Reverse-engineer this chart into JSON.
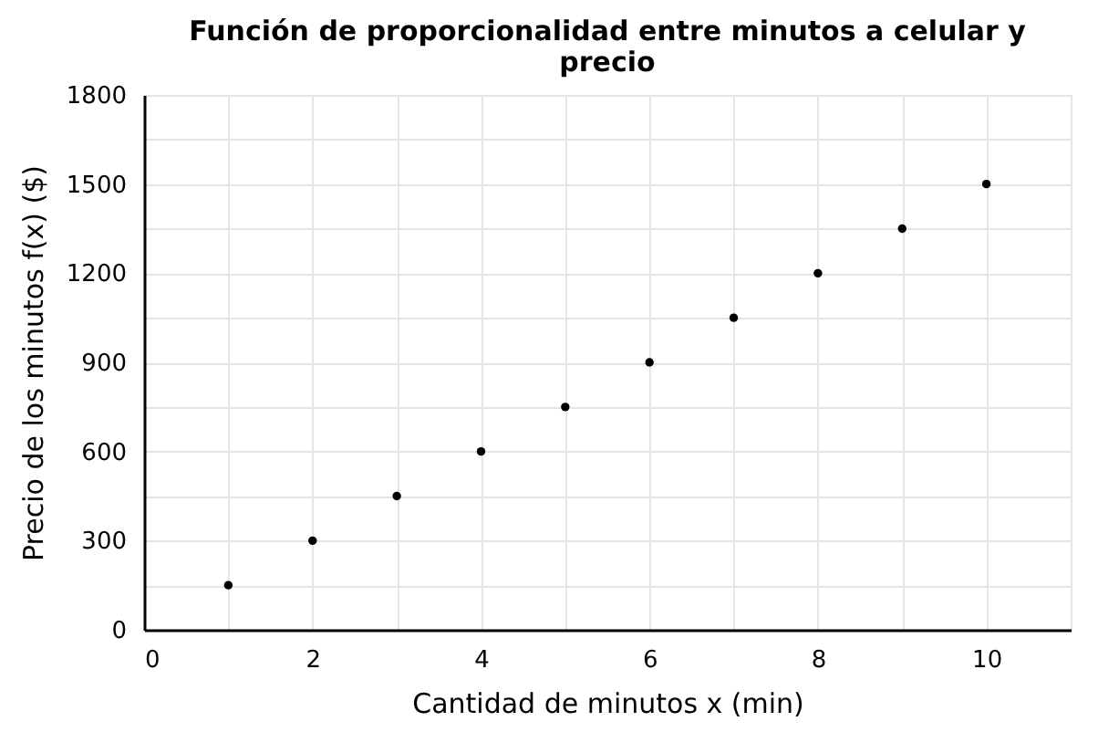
{
  "chart_data": {
    "type": "scatter",
    "title": "Función de proporcionalidad entre minutos a celular y precio",
    "xlabel": "Cantidad de minutos x (min)",
    "ylabel": "Precio de los minutos f(x) ($)",
    "x": [
      1,
      2,
      3,
      4,
      5,
      6,
      7,
      8,
      9,
      10
    ],
    "series": [
      {
        "color": "#000000",
        "values": [
          150,
          300,
          450,
          600,
          750,
          900,
          1050,
          1200,
          1350,
          1500
        ]
      }
    ],
    "xlim": [
      0,
      11
    ],
    "xticks": [
      0,
      {
        "value": 1,
        "label": null
      },
      2,
      {
        "value": 3,
        "label": null
      },
      4,
      {
        "value": 5,
        "label": null
      },
      6,
      {
        "value": 7,
        "label": null
      },
      8,
      {
        "value": 9,
        "label": null
      },
      10,
      {
        "value": 11,
        "label": null
      }
    ],
    "ylim": [
      0,
      1800
    ],
    "yticks": [
      0,
      {
        "value": 150,
        "label": null
      },
      300,
      {
        "value": 450,
        "label": null
      },
      600,
      {
        "value": 750,
        "label": null
      },
      900,
      {
        "value": 1050,
        "label": null
      },
      1200,
      {
        "value": 1350,
        "label": null
      },
      1500,
      {
        "value": 1650,
        "label": null
      },
      1800
    ],
    "grid": true,
    "marker": "circle"
  }
}
